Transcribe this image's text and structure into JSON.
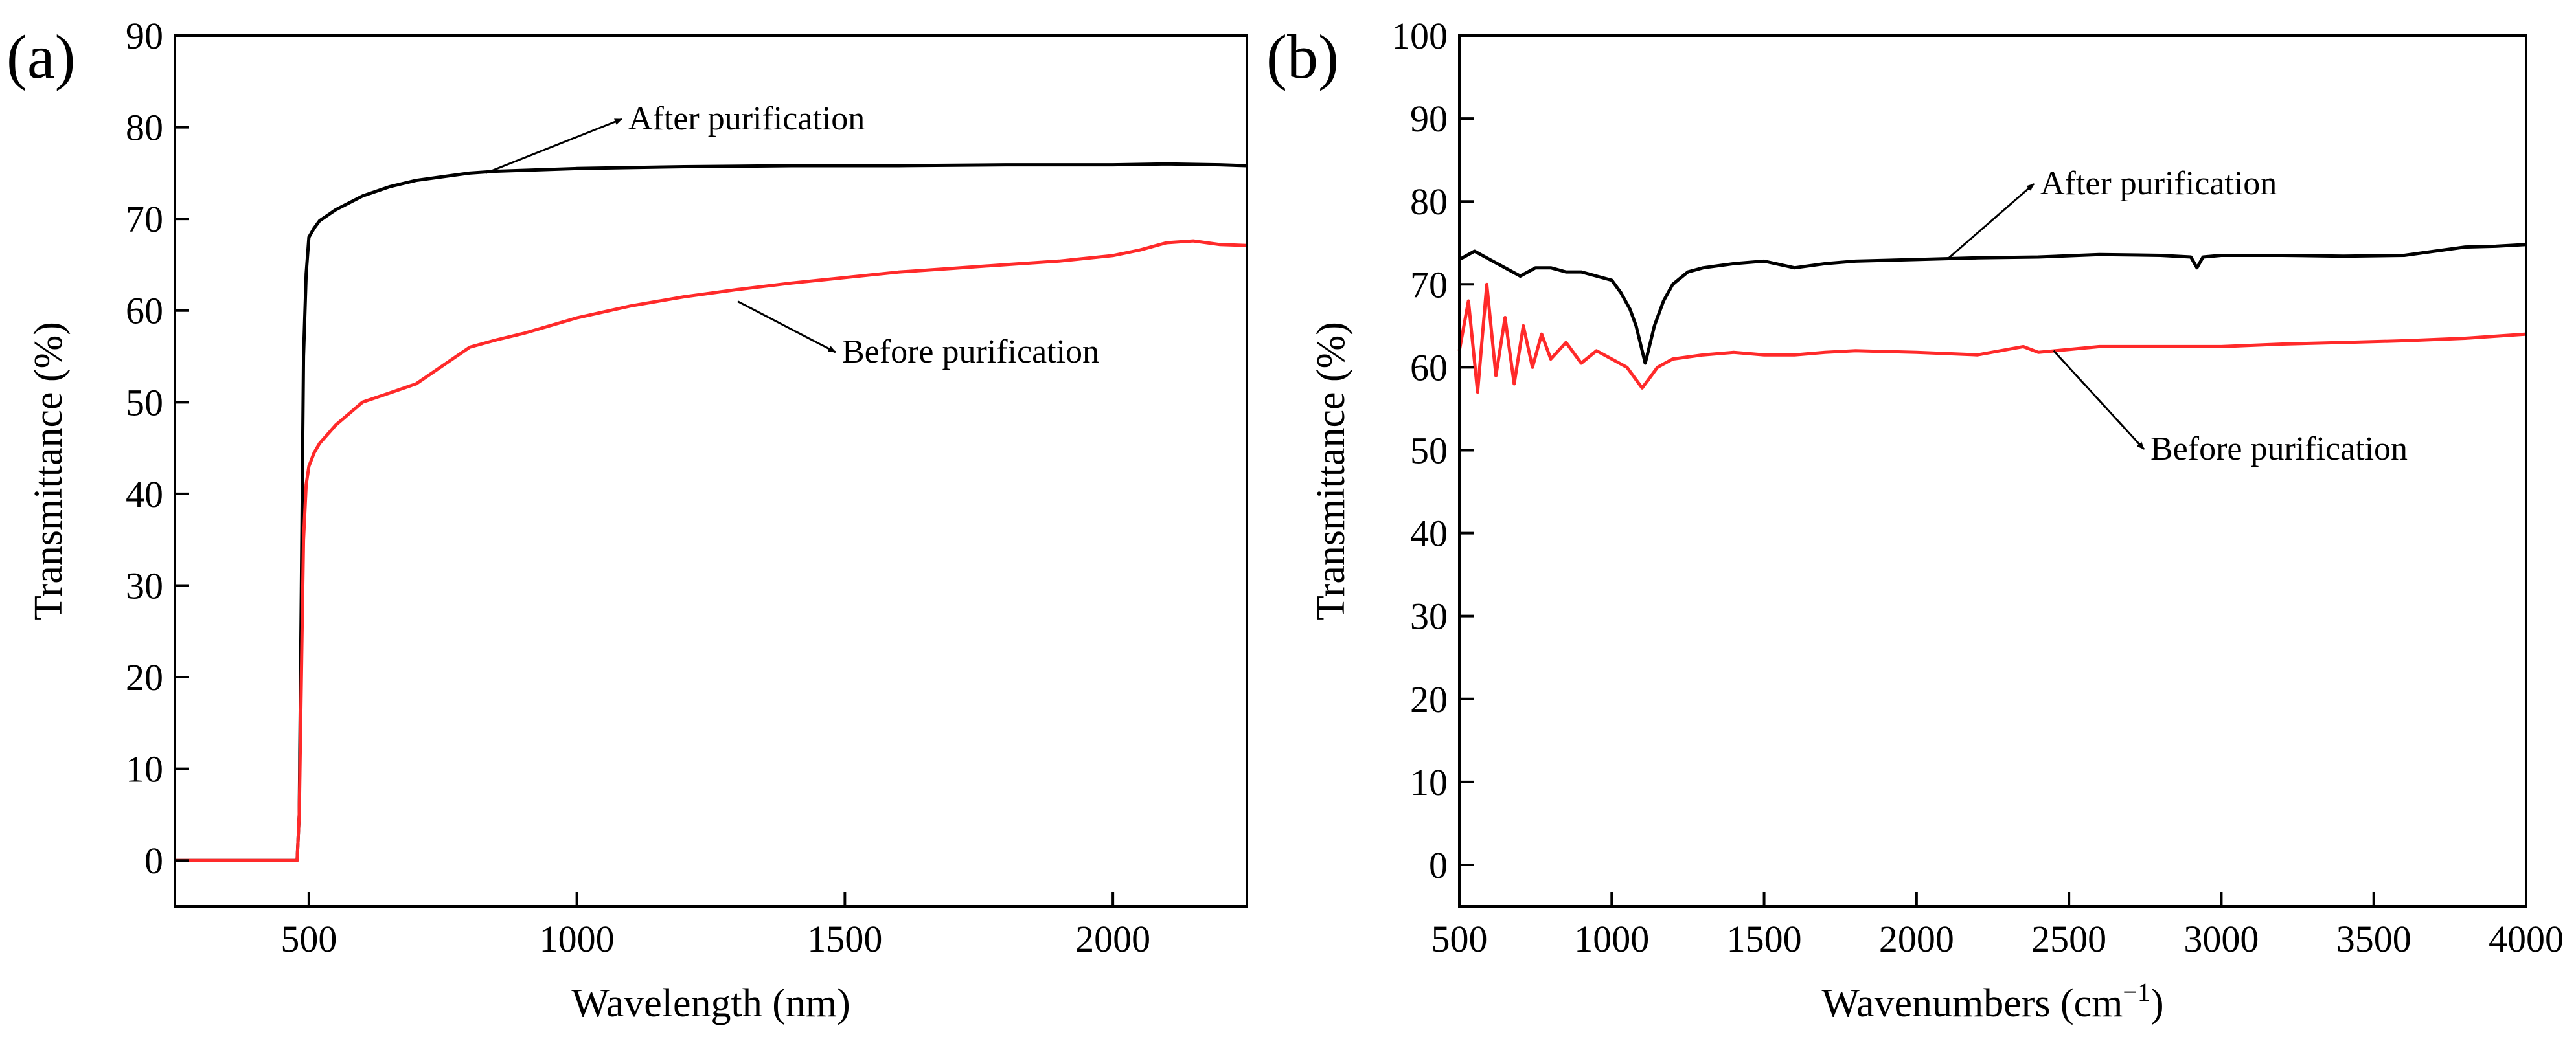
{
  "chart_data": [
    {
      "type": "line",
      "panel_label": "(a)",
      "xlabel": "Wavelength (nm)",
      "ylabel": "Transmittance (%)",
      "xlim": [
        250,
        2250
      ],
      "ylim": [
        -5,
        90
      ],
      "xticks": [
        500,
        1000,
        1500,
        2000
      ],
      "yticks": [
        0,
        10,
        20,
        30,
        40,
        50,
        60,
        70,
        80,
        90
      ],
      "grid": false,
      "series": [
        {
          "name": "After purification",
          "color": "#000000",
          "x": [
            250,
            470,
            478,
            482,
            486,
            490,
            495,
            500,
            510,
            520,
            550,
            600,
            650,
            700,
            750,
            800,
            850,
            900,
            1000,
            1200,
            1400,
            1600,
            1800,
            2000,
            2100,
            2200,
            2250
          ],
          "y": [
            0,
            0,
            0,
            5,
            30,
            55,
            64,
            68,
            69,
            69.8,
            71,
            72.5,
            73.5,
            74.2,
            74.6,
            75,
            75.2,
            75.3,
            75.5,
            75.7,
            75.8,
            75.8,
            75.9,
            75.9,
            76,
            75.9,
            75.8
          ]
        },
        {
          "name": "Before purification",
          "color": "#ff2a2a",
          "x": [
            250,
            470,
            478,
            482,
            486,
            490,
            495,
            500,
            510,
            520,
            550,
            600,
            650,
            700,
            750,
            800,
            850,
            900,
            1000,
            1100,
            1200,
            1300,
            1400,
            1500,
            1600,
            1700,
            1800,
            1900,
            2000,
            2050,
            2100,
            2150,
            2200,
            2250
          ],
          "y": [
            0,
            0,
            0,
            5,
            20,
            35,
            41,
            43,
            44.5,
            45.5,
            47.5,
            50,
            51,
            52,
            54,
            56,
            56.8,
            57.5,
            59.2,
            60.5,
            61.5,
            62.3,
            63,
            63.6,
            64.2,
            64.6,
            65,
            65.4,
            66,
            66.6,
            67.4,
            67.6,
            67.2,
            67.1
          ]
        }
      ],
      "annotations": [
        {
          "text": "After purification",
          "series": "After purification",
          "arrow_to": [
            830,
            75
          ]
        },
        {
          "text": "Before purification",
          "series": "Before purification",
          "arrow_to": [
            1300,
            61
          ]
        }
      ]
    },
    {
      "type": "line",
      "panel_label": "(b)",
      "xlabel": "Wavenumbers (cm",
      "xlabel_superscript": "-1",
      "xlabel_suffix": ")",
      "ylabel": "Transmittance (%)",
      "xlim": [
        500,
        4000
      ],
      "ylim": [
        -5,
        100
      ],
      "xticks": [
        500,
        1000,
        1500,
        2000,
        2500,
        3000,
        3500,
        4000
      ],
      "yticks": [
        0,
        10,
        20,
        30,
        40,
        50,
        60,
        70,
        80,
        90,
        100
      ],
      "grid": false,
      "series": [
        {
          "name": "After purification",
          "color": "#000000",
          "x": [
            500,
            550,
            600,
            650,
            700,
            750,
            800,
            850,
            900,
            950,
            1000,
            1030,
            1060,
            1080,
            1100,
            1110,
            1120,
            1140,
            1170,
            1200,
            1250,
            1300,
            1400,
            1500,
            1600,
            1700,
            1800,
            2000,
            2200,
            2400,
            2600,
            2800,
            2900,
            2920,
            2940,
            3000,
            3200,
            3400,
            3600,
            3700,
            3800,
            3900,
            4000
          ],
          "y": [
            73,
            74,
            73,
            72,
            71,
            72,
            72,
            71.5,
            71.5,
            71,
            70.5,
            69,
            67,
            65,
            62,
            60.5,
            62,
            65,
            68,
            70,
            71.5,
            72,
            72.5,
            72.8,
            72,
            72.5,
            72.8,
            73,
            73.2,
            73.3,
            73.6,
            73.5,
            73.3,
            72,
            73.3,
            73.5,
            73.5,
            73.4,
            73.5,
            74,
            74.5,
            74.6,
            74.8
          ]
        },
        {
          "name": "Before purification",
          "color": "#ff2a2a",
          "x": [
            500,
            530,
            560,
            590,
            620,
            650,
            680,
            710,
            740,
            770,
            800,
            850,
            900,
            950,
            1000,
            1050,
            1080,
            1100,
            1120,
            1150,
            1200,
            1300,
            1400,
            1500,
            1600,
            1700,
            1800,
            2000,
            2200,
            2350,
            2400,
            2600,
            2800,
            3000,
            3200,
            3400,
            3600,
            3800,
            4000
          ],
          "y": [
            62,
            68,
            57,
            70,
            59,
            66,
            58,
            65,
            60,
            64,
            61,
            63,
            60.5,
            62,
            61,
            60,
            58.5,
            57.5,
            58.5,
            60,
            61,
            61.5,
            61.8,
            61.5,
            61.5,
            61.8,
            62,
            61.8,
            61.5,
            62.5,
            61.8,
            62.5,
            62.5,
            62.5,
            62.8,
            63,
            63.2,
            63.5,
            64
          ]
        }
      ],
      "annotations": [
        {
          "text": "After purification",
          "series": "After purification",
          "arrow_to": [
            2100,
            73
          ]
        },
        {
          "text": "Before purification",
          "series": "Before purification",
          "arrow_to": [
            2450,
            62
          ]
        }
      ]
    }
  ]
}
